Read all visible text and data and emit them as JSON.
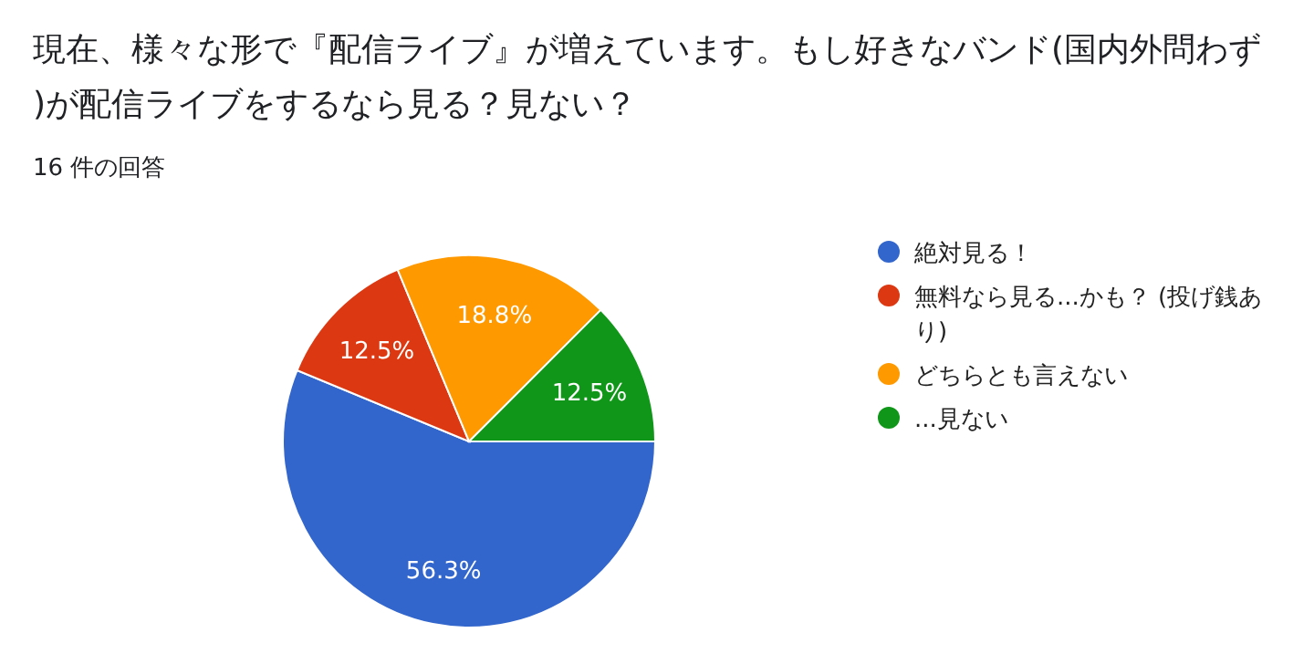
{
  "chart_data": {
    "type": "pie",
    "title": "現在、様々な形で『配信ライブ』が増えています。もし好きなバンド(国内外問わず)が配信ライブをするなら見る？見ない？",
    "subtitle": "16 件の回答",
    "categories": [
      "絶対見る！",
      "無料なら見る...かも？ (投げ銭あり)",
      "どちらとも言えない",
      "...見ない"
    ],
    "values": [
      56.3,
      12.5,
      18.8,
      12.5
    ],
    "value_labels": [
      "56.3%",
      "12.5%",
      "18.8%",
      "12.5%"
    ],
    "colors": [
      "#3366cc",
      "#dc3912",
      "#ff9900",
      "#109618"
    ],
    "legend": "right"
  }
}
